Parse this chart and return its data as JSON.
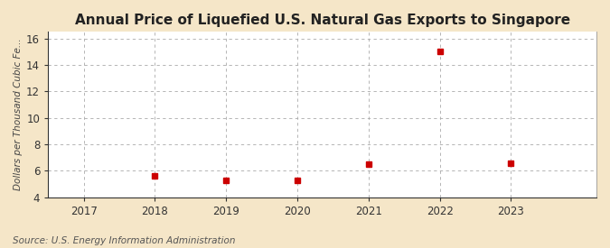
{
  "title": "Annual Price of Liquefied U.S. Natural Gas Exports to Singapore",
  "ylabel": "Dollars per Thousand Cubic Fe...",
  "source": "Source: U.S. Energy Information Administration",
  "figure_bg_color": "#f5e6c8",
  "axes_bg_color": "#ffffff",
  "x_values": [
    2018,
    2019,
    2020,
    2021,
    2022,
    2023
  ],
  "y_values": [
    5.6,
    5.3,
    5.3,
    6.5,
    15.0,
    6.6
  ],
  "xlim": [
    2016.5,
    2024.2
  ],
  "ylim": [
    4,
    16.5
  ],
  "yticks": [
    4,
    6,
    8,
    10,
    12,
    14,
    16
  ],
  "xticks": [
    2017,
    2018,
    2019,
    2020,
    2021,
    2022,
    2023
  ],
  "marker_color": "#cc0000",
  "marker_size": 4,
  "grid_color": "#aaaaaa",
  "title_fontsize": 11,
  "label_fontsize": 7.5,
  "tick_fontsize": 8.5,
  "source_fontsize": 7.5
}
